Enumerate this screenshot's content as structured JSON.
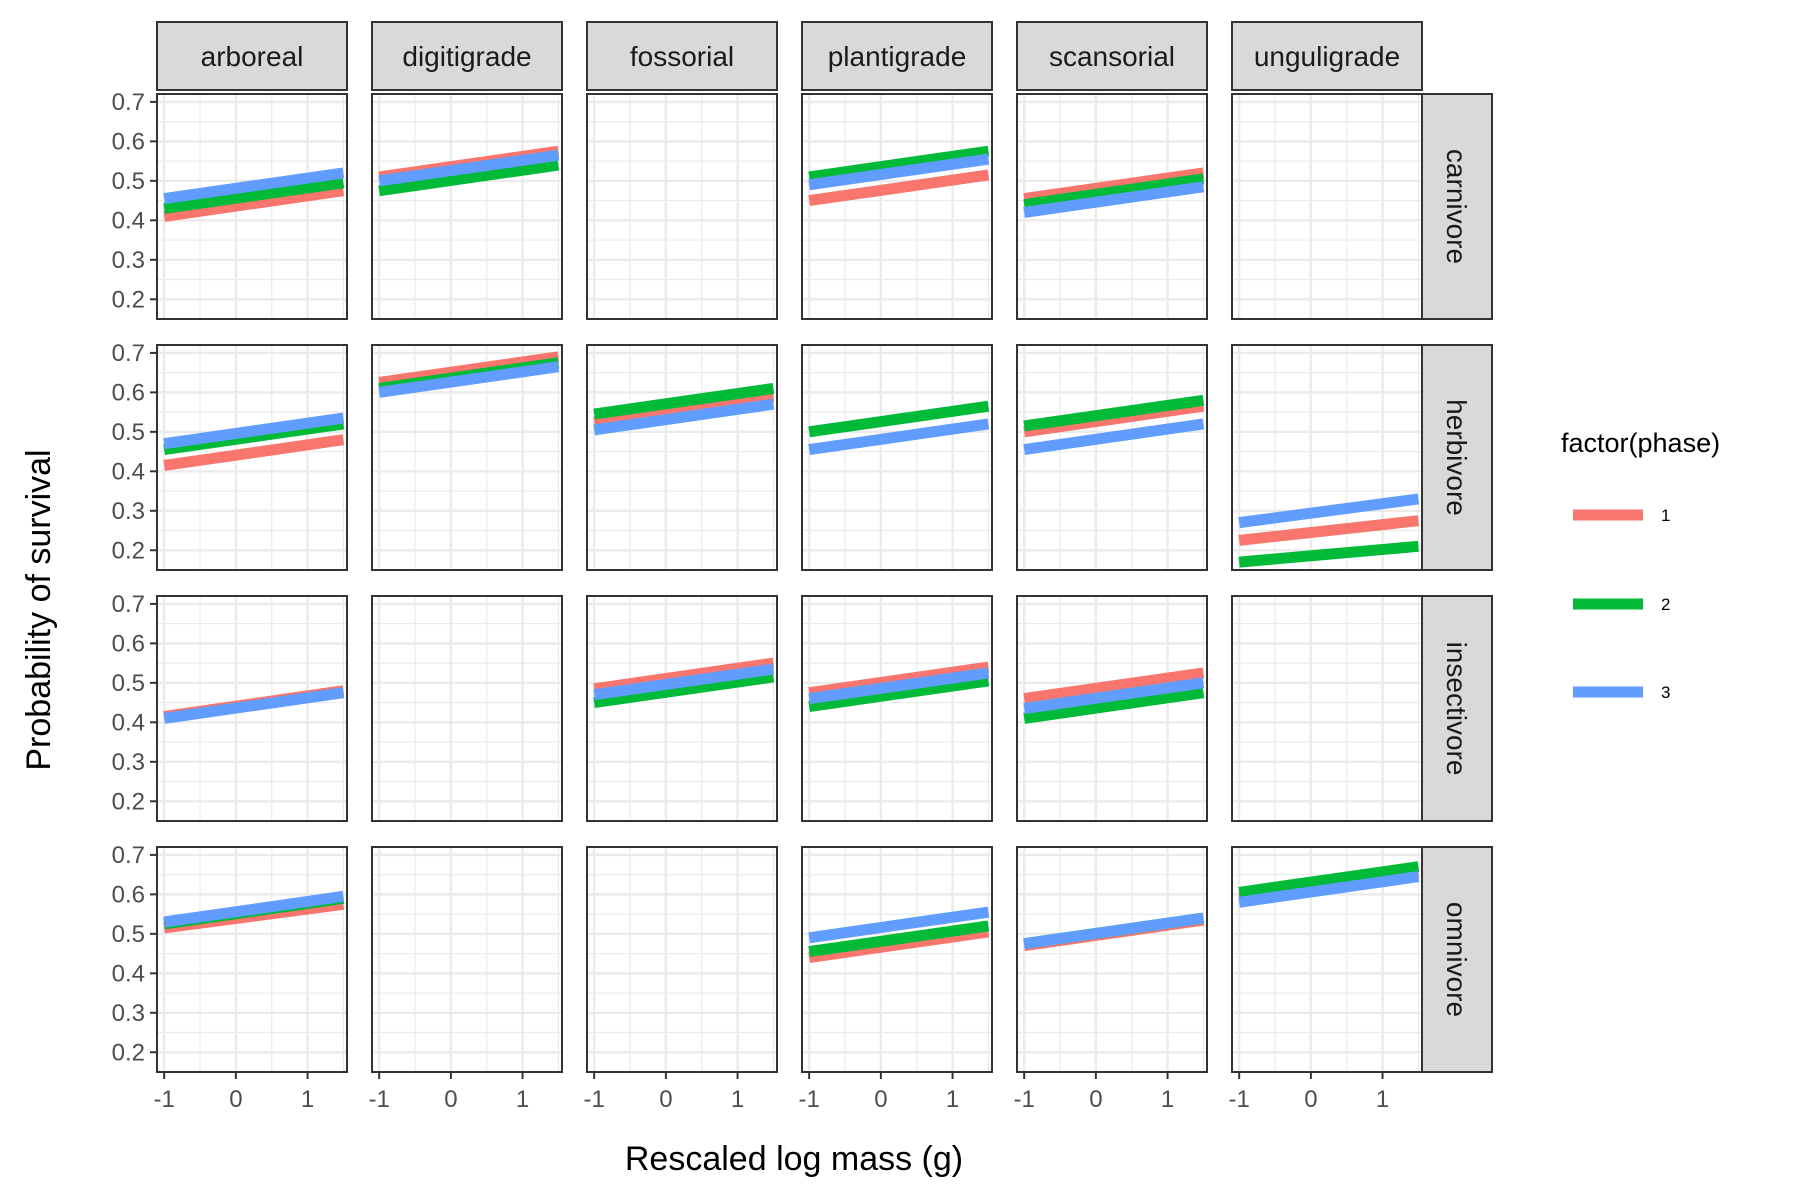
{
  "chart_data": {
    "type": "line",
    "xlabel": "Rescaled log mass (g)",
    "ylabel": "Probability of survival",
    "columns": [
      "arboreal",
      "digitigrade",
      "fossorial",
      "plantigrade",
      "scansorial",
      "unguligrade"
    ],
    "rows": [
      "carnivore",
      "herbivore",
      "insectivore",
      "omnivore"
    ],
    "xlim": [
      -1.1,
      1.55
    ],
    "ylim": [
      0.15,
      0.72
    ],
    "x_ticks": [
      -1,
      0,
      1
    ],
    "x_tick_labels": [
      "-1",
      "0",
      "1"
    ],
    "y_ticks": [
      0.2,
      0.3,
      0.4,
      0.5,
      0.6,
      0.7
    ],
    "y_tick_labels": [
      "0.2",
      "0.3",
      "0.4",
      "0.5",
      "0.6",
      "0.7"
    ],
    "grid": true,
    "legend": {
      "title": "factor(phase)",
      "position": "right",
      "entries": [
        {
          "label": "1",
          "color": "#F8766D"
        },
        {
          "label": "2",
          "color": "#00BA38"
        },
        {
          "label": "3",
          "color": "#619CFF"
        }
      ]
    },
    "panels": [
      {
        "row": "carnivore",
        "col": "arboreal",
        "lines": [
          {
            "phase": "1",
            "x": [
              -1,
              1.5
            ],
            "y": [
              0.41,
              0.475
            ]
          },
          {
            "phase": "2",
            "x": [
              -1,
              1.5
            ],
            "y": [
              0.43,
              0.495
            ]
          },
          {
            "phase": "3",
            "x": [
              -1,
              1.5
            ],
            "y": [
              0.455,
              0.52
            ]
          }
        ]
      },
      {
        "row": "carnivore",
        "col": "digitigrade",
        "lines": [
          {
            "phase": "1",
            "x": [
              -1,
              1.5
            ],
            "y": [
              0.51,
              0.575
            ]
          },
          {
            "phase": "2",
            "x": [
              -1,
              1.5
            ],
            "y": [
              0.475,
              0.54
            ]
          },
          {
            "phase": "3",
            "x": [
              -1,
              1.5
            ],
            "y": [
              0.5,
              0.565
            ]
          }
        ]
      },
      {
        "row": "carnivore",
        "col": "fossorial",
        "lines": []
      },
      {
        "row": "carnivore",
        "col": "plantigrade",
        "lines": [
          {
            "phase": "1",
            "x": [
              -1,
              1.5
            ],
            "y": [
              0.45,
              0.515
            ]
          },
          {
            "phase": "2",
            "x": [
              -1,
              1.5
            ],
            "y": [
              0.51,
              0.575
            ]
          },
          {
            "phase": "3",
            "x": [
              -1,
              1.5
            ],
            "y": [
              0.49,
              0.555
            ]
          }
        ]
      },
      {
        "row": "carnivore",
        "col": "scansorial",
        "lines": [
          {
            "phase": "1",
            "x": [
              -1,
              1.5
            ],
            "y": [
              0.455,
              0.52
            ]
          },
          {
            "phase": "2",
            "x": [
              -1,
              1.5
            ],
            "y": [
              0.44,
              0.505
            ]
          },
          {
            "phase": "3",
            "x": [
              -1,
              1.5
            ],
            "y": [
              0.42,
              0.485
            ]
          }
        ]
      },
      {
        "row": "carnivore",
        "col": "unguligrade",
        "lines": []
      },
      {
        "row": "herbivore",
        "col": "arboreal",
        "lines": [
          {
            "phase": "1",
            "x": [
              -1,
              1.5
            ],
            "y": [
              0.415,
              0.48
            ]
          },
          {
            "phase": "2",
            "x": [
              -1,
              1.5
            ],
            "y": [
              0.455,
              0.52
            ]
          },
          {
            "phase": "3",
            "x": [
              -1,
              1.5
            ],
            "y": [
              0.47,
              0.535
            ]
          }
        ]
      },
      {
        "row": "herbivore",
        "col": "digitigrade",
        "lines": [
          {
            "phase": "1",
            "x": [
              -1,
              1.5
            ],
            "y": [
              0.625,
              0.69
            ]
          },
          {
            "phase": "2",
            "x": [
              -1,
              1.5
            ],
            "y": [
              0.61,
              0.675
            ]
          },
          {
            "phase": "3",
            "x": [
              -1,
              1.5
            ],
            "y": [
              0.6,
              0.665
            ]
          }
        ]
      },
      {
        "row": "herbivore",
        "col": "fossorial",
        "lines": [
          {
            "phase": "1",
            "x": [
              -1,
              1.5
            ],
            "y": [
              0.525,
              0.59
            ]
          },
          {
            "phase": "2",
            "x": [
              -1,
              1.5
            ],
            "y": [
              0.545,
              0.61
            ]
          },
          {
            "phase": "3",
            "x": [
              -1,
              1.5
            ],
            "y": [
              0.505,
              0.57
            ]
          }
        ]
      },
      {
        "row": "herbivore",
        "col": "plantigrade",
        "lines": [
          {
            "phase": "2",
            "x": [
              -1,
              1.5
            ],
            "y": [
              0.5,
              0.565
            ]
          },
          {
            "phase": "3",
            "x": [
              -1,
              1.5
            ],
            "y": [
              0.455,
              0.52
            ]
          }
        ]
      },
      {
        "row": "herbivore",
        "col": "scansorial",
        "lines": [
          {
            "phase": "1",
            "x": [
              -1,
              1.5
            ],
            "y": [
              0.5,
              0.565
            ]
          },
          {
            "phase": "2",
            "x": [
              -1,
              1.5
            ],
            "y": [
              0.515,
              0.58
            ]
          },
          {
            "phase": "3",
            "x": [
              -1,
              1.5
            ],
            "y": [
              0.455,
              0.52
            ]
          }
        ]
      },
      {
        "row": "herbivore",
        "col": "unguligrade",
        "lines": [
          {
            "phase": "1",
            "x": [
              -1,
              1.5
            ],
            "y": [
              0.225,
              0.275
            ]
          },
          {
            "phase": "2",
            "x": [
              -1,
              1.5
            ],
            "y": [
              0.17,
              0.21
            ]
          },
          {
            "phase": "3",
            "x": [
              -1,
              1.5
            ],
            "y": [
              0.27,
              0.33
            ]
          }
        ]
      },
      {
        "row": "insectivore",
        "col": "arboreal",
        "lines": [
          {
            "phase": "1",
            "x": [
              -1,
              1.5
            ],
            "y": [
              0.415,
              0.48
            ]
          },
          {
            "phase": "3",
            "x": [
              -1,
              1.5
            ],
            "y": [
              0.41,
              0.475
            ]
          }
        ]
      },
      {
        "row": "insectivore",
        "col": "digitigrade",
        "lines": []
      },
      {
        "row": "insectivore",
        "col": "fossorial",
        "lines": [
          {
            "phase": "1",
            "x": [
              -1,
              1.5
            ],
            "y": [
              0.485,
              0.55
            ]
          },
          {
            "phase": "2",
            "x": [
              -1,
              1.5
            ],
            "y": [
              0.45,
              0.515
            ]
          },
          {
            "phase": "3",
            "x": [
              -1,
              1.5
            ],
            "y": [
              0.47,
              0.535
            ]
          }
        ]
      },
      {
        "row": "insectivore",
        "col": "plantigrade",
        "lines": [
          {
            "phase": "1",
            "x": [
              -1,
              1.5
            ],
            "y": [
              0.475,
              0.54
            ]
          },
          {
            "phase": "2",
            "x": [
              -1,
              1.5
            ],
            "y": [
              0.44,
              0.505
            ]
          },
          {
            "phase": "3",
            "x": [
              -1,
              1.5
            ],
            "y": [
              0.46,
              0.525
            ]
          }
        ]
      },
      {
        "row": "insectivore",
        "col": "scansorial",
        "lines": [
          {
            "phase": "1",
            "x": [
              -1,
              1.5
            ],
            "y": [
              0.46,
              0.525
            ]
          },
          {
            "phase": "2",
            "x": [
              -1,
              1.5
            ],
            "y": [
              0.41,
              0.475
            ]
          },
          {
            "phase": "3",
            "x": [
              -1,
              1.5
            ],
            "y": [
              0.435,
              0.5
            ]
          }
        ]
      },
      {
        "row": "insectivore",
        "col": "unguligrade",
        "lines": []
      },
      {
        "row": "omnivore",
        "col": "arboreal",
        "lines": [
          {
            "phase": "1",
            "x": [
              -1,
              1.5
            ],
            "y": [
              0.515,
              0.575
            ]
          },
          {
            "phase": "2",
            "x": [
              -1,
              1.5
            ],
            "y": [
              0.525,
              0.59
            ]
          },
          {
            "phase": "3",
            "x": [
              -1,
              1.5
            ],
            "y": [
              0.53,
              0.595
            ]
          }
        ]
      },
      {
        "row": "omnivore",
        "col": "digitigrade",
        "lines": []
      },
      {
        "row": "omnivore",
        "col": "fossorial",
        "lines": []
      },
      {
        "row": "omnivore",
        "col": "plantigrade",
        "lines": [
          {
            "phase": "1",
            "x": [
              -1,
              1.5
            ],
            "y": [
              0.44,
              0.505
            ]
          },
          {
            "phase": "2",
            "x": [
              -1,
              1.5
            ],
            "y": [
              0.455,
              0.52
            ]
          },
          {
            "phase": "3",
            "x": [
              -1,
              1.5
            ],
            "y": [
              0.49,
              0.555
            ]
          }
        ]
      },
      {
        "row": "omnivore",
        "col": "scansorial",
        "lines": [
          {
            "phase": "1",
            "x": [
              -1,
              1.5
            ],
            "y": [
              0.47,
              0.535
            ]
          },
          {
            "phase": "2",
            "x": [
              -1,
              1.5
            ],
            "y": [
              0.475,
              0.54
            ]
          },
          {
            "phase": "3",
            "x": [
              -1,
              1.5
            ],
            "y": [
              0.475,
              0.54
            ]
          }
        ]
      },
      {
        "row": "omnivore",
        "col": "unguligrade",
        "lines": [
          {
            "phase": "1",
            "x": [
              -1,
              1.5
            ],
            "y": [
              0.59,
              0.655
            ]
          },
          {
            "phase": "2",
            "x": [
              -1,
              1.5
            ],
            "y": [
              0.605,
              0.67
            ]
          },
          {
            "phase": "3",
            "x": [
              -1,
              1.5
            ],
            "y": [
              0.58,
              0.645
            ]
          }
        ]
      }
    ]
  }
}
